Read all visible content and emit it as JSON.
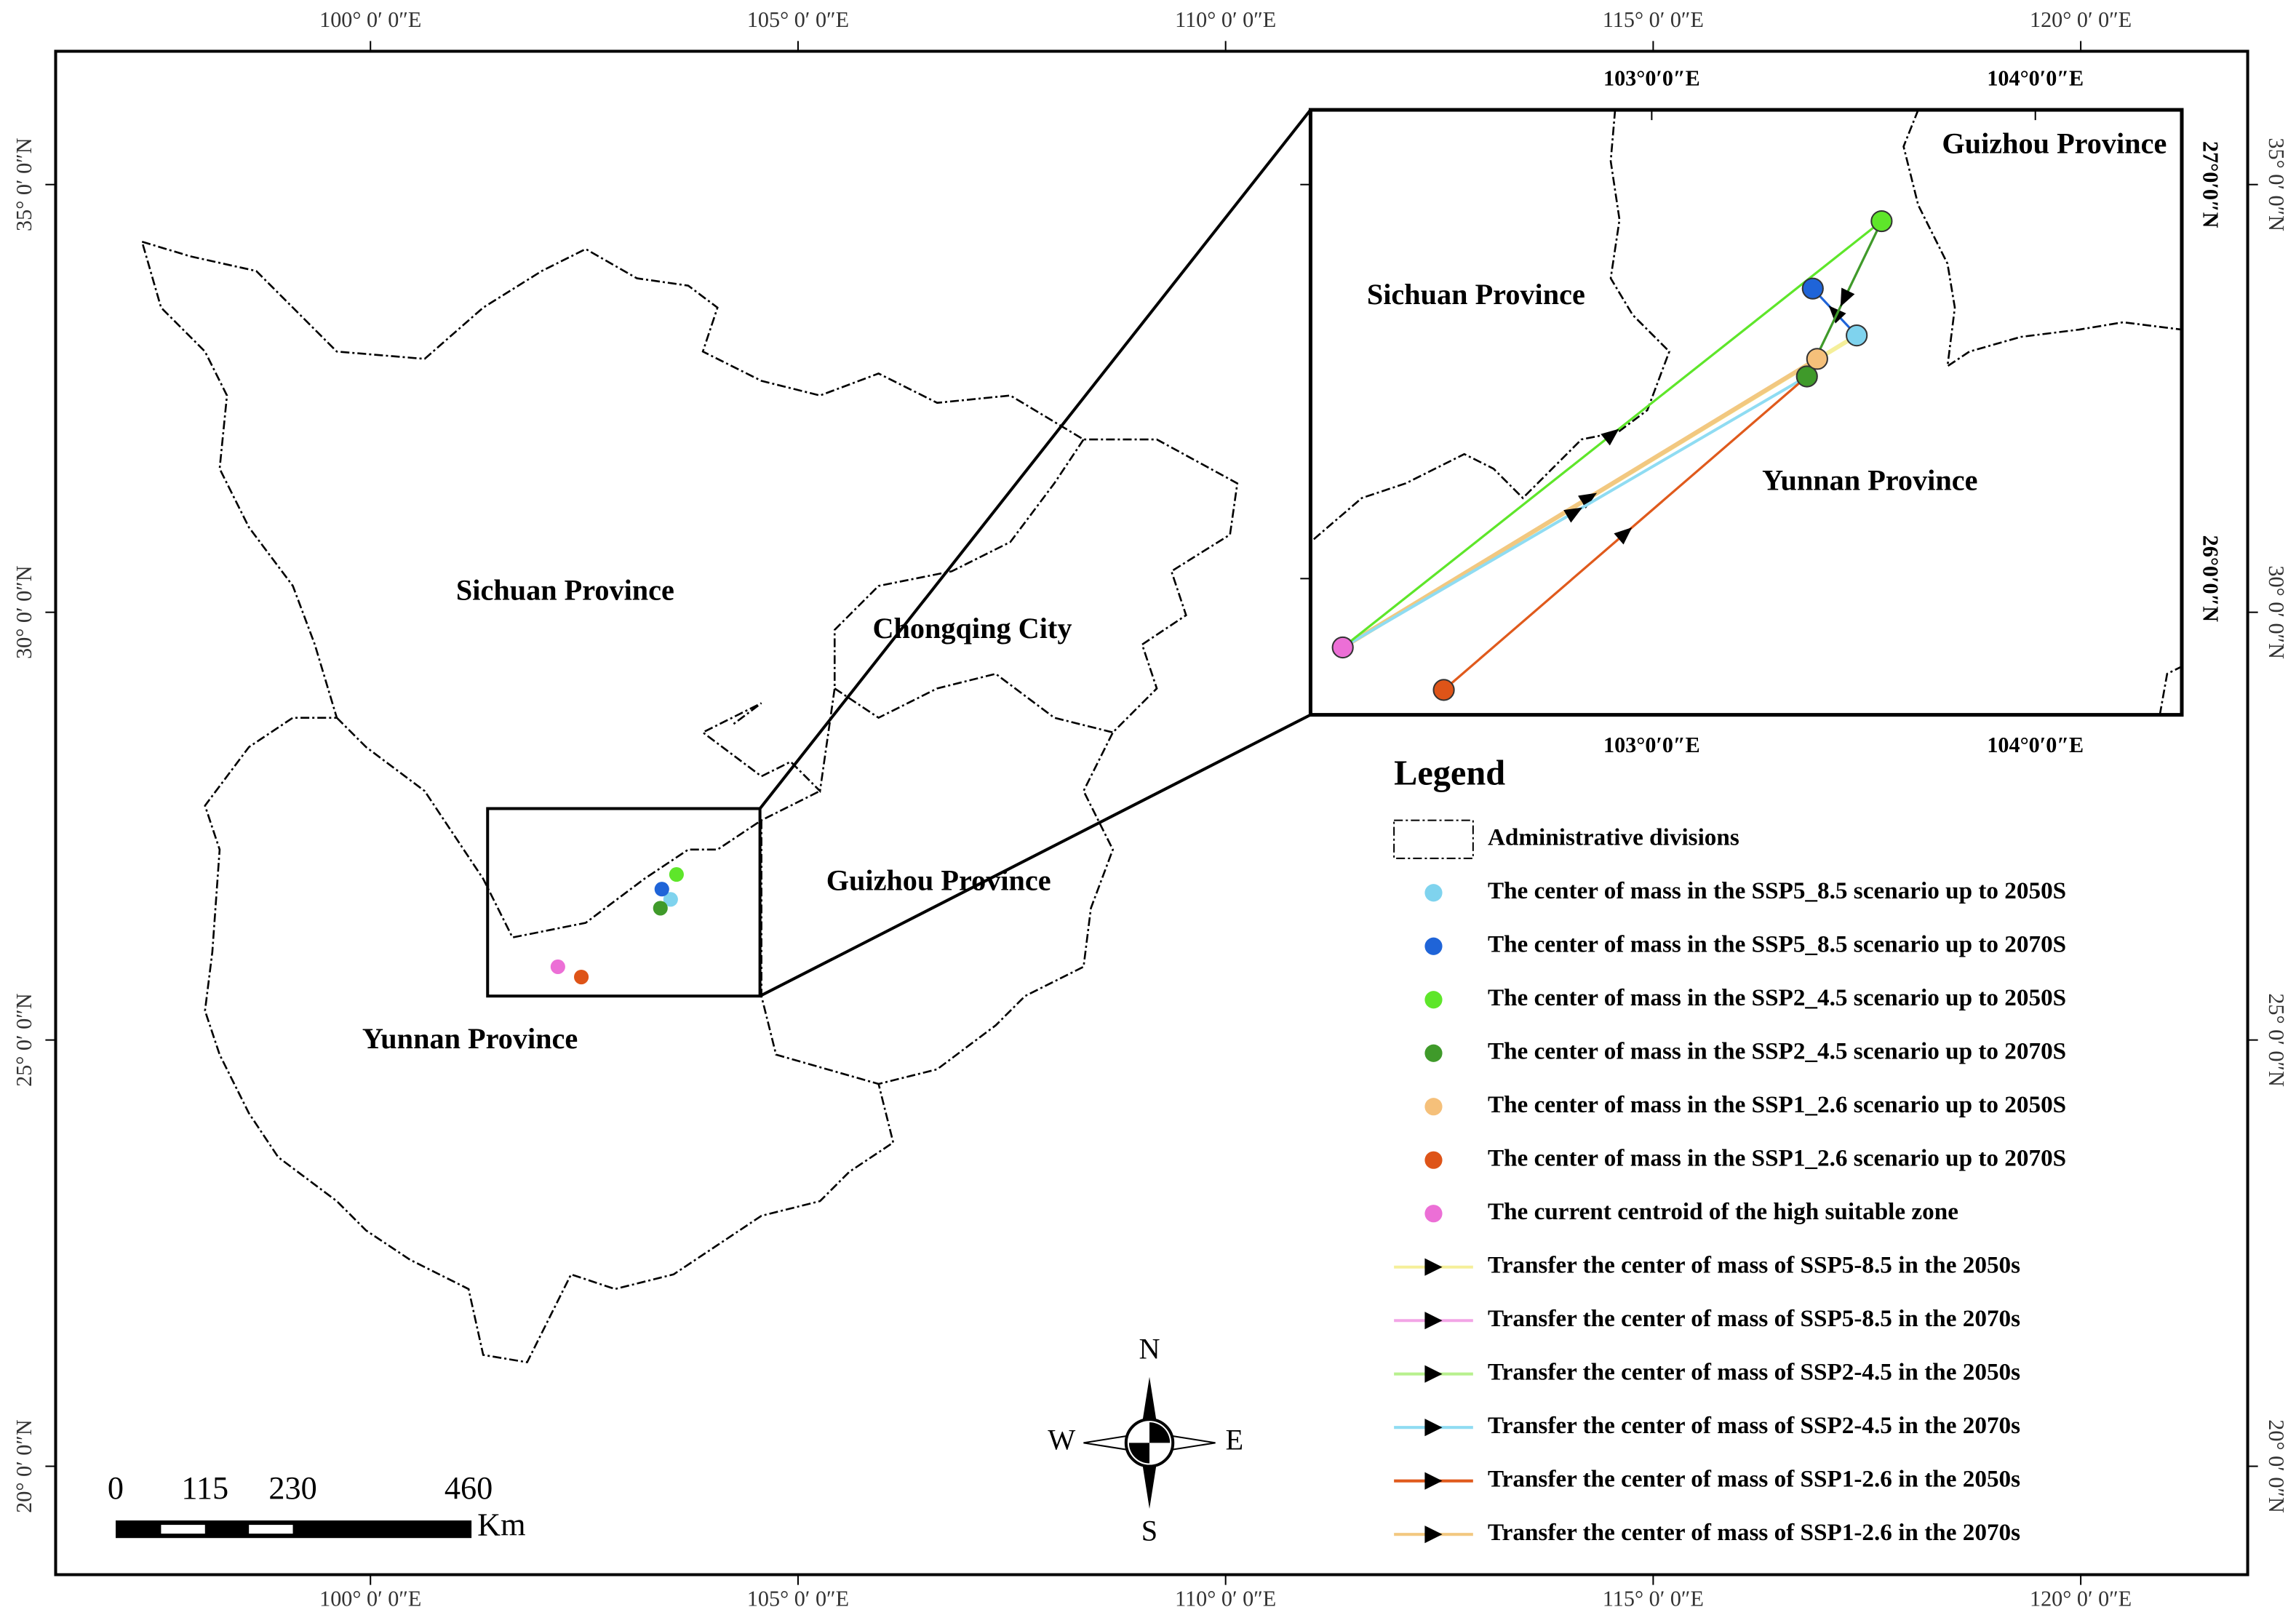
{
  "frame": {
    "lon_labels": [
      "100° 0′ 0″E",
      "105° 0′ 0″E",
      "110° 0′ 0″E",
      "115° 0′ 0″E",
      "120° 0′ 0″E"
    ],
    "lat_labels": [
      "35° 0′ 0″N",
      "30° 0′ 0″N",
      "25° 0′ 0″N",
      "20° 0′ 0″N"
    ]
  },
  "map_labels": [
    "Sichuan Province",
    "Chongqing City",
    "Guizhou Province",
    "Yunnan Province"
  ],
  "inset": {
    "lon_labels": [
      "103°0′0″E",
      "104°0′0″E"
    ],
    "lat_labels": [
      "27°0′0″N",
      "26°0′0″N"
    ],
    "labels": [
      "Sichuan Province",
      "Guizhou Province",
      "Yunnan Province"
    ]
  },
  "legend": {
    "title": "Legend",
    "items": [
      {
        "label": "Administrative divisions"
      },
      {
        "label": "The center of mass in the SSP5_8.5 scenario up to 2050S",
        "color": "#7fd3ee"
      },
      {
        "label": "The center of mass in the SSP5_8.5 scenario up to 2070S",
        "color": "#1f64d8"
      },
      {
        "label": "The center of mass in the SSP2_4.5 scenario up to 2050S",
        "color": "#5ee62a"
      },
      {
        "label": "The center of mass in the SSP2_4.5 scenario up to 2070S",
        "color": "#3f9a2a"
      },
      {
        "label": "The center of mass in the SSP1_2.6 scenario up to 2050S",
        "color": "#f5c07a"
      },
      {
        "label": "The center of mass in the SSP1_2.6 scenario up to 2070S",
        "color": "#de5418"
      },
      {
        "label": "The current centroid of the high suitable zone",
        "color": "#ec6fd6"
      },
      {
        "label": "Transfer the center of mass of SSP5-8.5 in the 2050s",
        "color": "#f5ef9a"
      },
      {
        "label": "Transfer the center of mass of SSP5-8.5 in the 2070s",
        "color": "#f2a5e6"
      },
      {
        "label": "Transfer the center of mass of SSP2-4.5 in the 2050s",
        "color": "#b8f08e"
      },
      {
        "label": "Transfer the center of mass of SSP2-4.5 in the 2070s",
        "color": "#8fdcf2"
      },
      {
        "label": "Transfer the center of mass of SSP1-2.6 in the 2050s",
        "color": "#e05a1c"
      },
      {
        "label": "Transfer the center of mass of SSP1-2.6 in the 2070s",
        "color": "#f2c880"
      }
    ]
  },
  "scale_bar": {
    "labels": [
      "0",
      "115",
      "230",
      "460"
    ],
    "unit": "Km"
  },
  "compass": {
    "north": "N",
    "south": "S",
    "east": "E",
    "west": "W"
  }
}
